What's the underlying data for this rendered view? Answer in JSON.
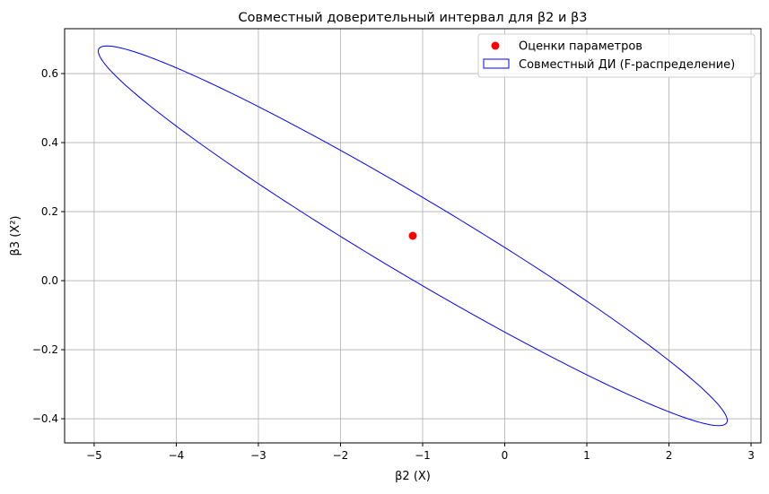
{
  "chart_data": {
    "type": "scatter",
    "title": "Совместный доверительный интервал для β2 и β3",
    "xlabel": "β2 (X)",
    "ylabel": "β3 (X²)",
    "xlim": [
      -5.36,
      3.12
    ],
    "ylim": [
      -0.47,
      0.73
    ],
    "xticks": [
      -5,
      -4,
      -3,
      -2,
      -1,
      0,
      1,
      2,
      3
    ],
    "yticks": [
      -0.4,
      -0.2,
      0.0,
      0.2,
      0.4,
      0.6
    ],
    "xtick_labels": [
      "−5",
      "−4",
      "−3",
      "−2",
      "−1",
      "0",
      "1",
      "2",
      "3"
    ],
    "ytick_labels": [
      "−0.4",
      "−0.2",
      "0.0",
      "0.2",
      "0.4",
      "0.6"
    ],
    "grid": true,
    "legend_placement": "upper right",
    "series": [
      {
        "name": "Оценки параметров",
        "kind": "point",
        "color": "#ff0000",
        "points": [
          [
            -1.12,
            0.13
          ]
        ]
      },
      {
        "name": "Совместный ДИ (F-распределение)",
        "kind": "ellipse",
        "color": "#0000ff",
        "center": [
          -1.12,
          0.13
        ],
        "x_half_range": 3.83,
        "y_half_range": 0.55,
        "correlation": -0.9725
      }
    ]
  }
}
